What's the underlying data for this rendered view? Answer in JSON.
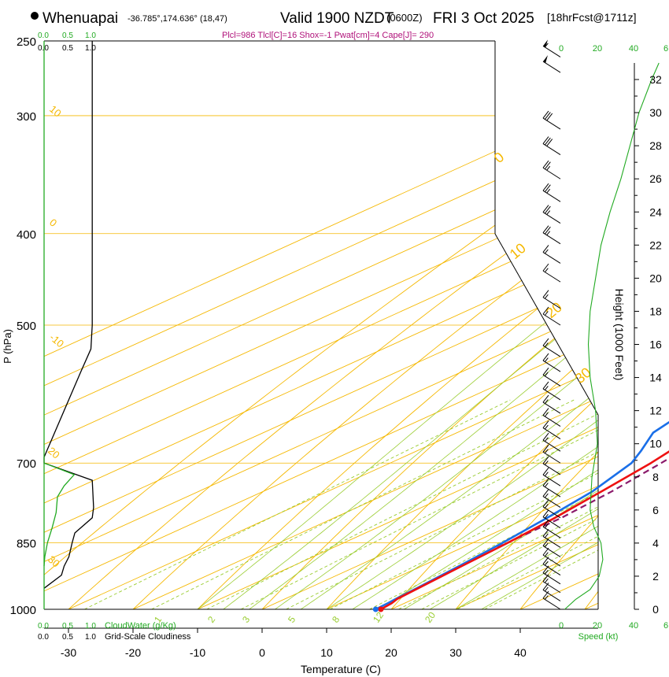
{
  "header": {
    "station": "Whenuapai",
    "coords": "-36.785°,174.636° (18,47)",
    "valid": "Valid 1900 NZDT",
    "utc": "(0600Z)",
    "date": "FRI 3 Oct 2025",
    "forecast": "[18hrFcst@1711z]",
    "params": "Plcl=986 Tlcl[C]=16 Shox=-1 Pwat[cm]=4 Cape[J]= 290"
  },
  "colors": {
    "temperature": "#ee1111",
    "dewpoint": "#1a6fe8",
    "parcel": "#8b1a6b",
    "isotherm": "#f5b800",
    "dry_adiabat": "#f5b800",
    "moist_adiabat": "#9acd32",
    "mixing_ratio": "#9acd32",
    "cloud_water": "#22aa22",
    "cloudiness": "#000000",
    "params_text": "#b0127a",
    "green_text": "#22aa22"
  },
  "chart_data": {
    "type": "line",
    "title": "Whenuapai Valid 1900 NZDT (0600Z) FRI 3 Oct 2025",
    "xlabel": "Temperature (C)",
    "ylabel": "P (hPa)",
    "ylabel_right": "Height (1000 Feet)",
    "xlim": [
      -35,
      45
    ],
    "ylim": [
      1000,
      250
    ],
    "x_ticks": [
      -30,
      -20,
      -10,
      0,
      10,
      20,
      30,
      40
    ],
    "x_tick_labels": [
      "-30",
      "-20",
      "-10",
      "0",
      "10",
      "20",
      "30",
      "40"
    ],
    "pressure_levels": [
      1000,
      850,
      700,
      500,
      400,
      300,
      250
    ],
    "pressure_labels": [
      "1000",
      "850",
      "700",
      "500",
      "400",
      "300",
      "250"
    ],
    "height_ticks": [
      0,
      2,
      4,
      6,
      8,
      10,
      12,
      14,
      16,
      18,
      20,
      22,
      24,
      26,
      28,
      30,
      32
    ],
    "height_labels": [
      "0",
      "2",
      "4",
      "6",
      "8",
      "10",
      "12",
      "14",
      "16",
      "18",
      "20",
      "22",
      "24",
      "26",
      "28",
      "30",
      "32"
    ],
    "series": [
      {
        "name": "Temperature",
        "pressure": [
          1000,
          985,
          975,
          950,
          900,
          850,
          800,
          750,
          700,
          650,
          600,
          550,
          500,
          450,
          400,
          350,
          300,
          270
        ],
        "values": [
          18.4,
          18.0,
          17.4,
          17.0,
          16.2,
          15.4,
          14.2,
          12.4,
          10.4,
          7.5,
          5.6,
          4.0,
          2.0,
          -0.8,
          -3.4,
          -6.6,
          -11.2,
          -14.8
        ]
      },
      {
        "name": "Dewpoint",
        "pressure": [
          1000,
          985,
          975,
          950,
          900,
          850,
          800,
          750,
          700,
          680,
          650,
          620,
          600,
          550,
          500,
          450,
          400,
          350,
          300,
          270
        ],
        "values": [
          17.6,
          17.4,
          17.2,
          16.8,
          15.8,
          14.6,
          13.0,
          11.0,
          7.4,
          4.8,
          0.4,
          -1.6,
          -3.0,
          -5.2,
          -8.0,
          -11.8,
          -17.0,
          -23.8,
          -30.0,
          -33.0
        ]
      },
      {
        "name": "Parcel",
        "pressure": [
          860,
          800,
          750,
          700,
          650,
          600,
          550,
          500,
          450,
          400,
          370
        ],
        "values": [
          15.4,
          15.2,
          14.0,
          12.0,
          9.6,
          7.1,
          4.5,
          1.8,
          -1.2,
          -4.8,
          -7.2
        ]
      }
    ],
    "cloud_water_axis": [
      "0.0",
      "0.5",
      "1.0"
    ],
    "cloudiness_axis": [
      "0.0",
      "0.5",
      "1.0"
    ],
    "cloud_water_label": "CloudWater (g/Kg)",
    "cloudiness_label": "Grid-Scale Cloudiness",
    "cloudiness_profile": {
      "pressure": [
        250,
        500,
        530,
        560,
        690,
        700,
        730,
        780,
        800,
        830,
        850,
        880,
        900,
        920,
        950
      ],
      "values": [
        0.72,
        0.72,
        0.7,
        0.55,
        0.0,
        0.0,
        0.72,
        0.74,
        0.72,
        0.46,
        0.42,
        0.37,
        0.3,
        0.26,
        0.0
      ]
    },
    "cloud_water_profile": {
      "pressure": [
        700,
        720,
        740,
        760,
        790,
        820,
        850,
        880,
        900
      ],
      "values": [
        0.0,
        0.45,
        0.3,
        0.2,
        0.18,
        0.12,
        0.05,
        0.01,
        0.0
      ]
    },
    "isotherm_labels": [
      "10",
      "0",
      "-10",
      "20",
      "30"
    ],
    "dry_adiabat_labels": [
      "0",
      "10",
      "20",
      "30"
    ],
    "mixing_ratio_labels": [
      "1",
      "2",
      "3",
      "5",
      "8",
      "12",
      "20"
    ],
    "speed_axis_label": "Speed (kt)",
    "speed_ticks_top": [
      "0",
      "20",
      "40",
      "6"
    ],
    "speed_ticks_bottom": [
      "0",
      "20",
      "40",
      "6"
    ],
    "wind_speed_profile": {
      "height_kft": [
        0,
        0.6,
        1.2,
        2,
        3,
        4,
        5,
        6,
        8,
        10,
        12,
        14,
        16,
        18,
        20,
        22,
        24,
        26,
        28,
        30,
        32,
        33
      ],
      "speed_kt": [
        2,
        8,
        16,
        21,
        23,
        22,
        18,
        16,
        17,
        20,
        19,
        16,
        15,
        16,
        19,
        22,
        27,
        33,
        38,
        43,
        50,
        54
      ]
    },
    "wind_barbs": {
      "pressure": [
        270,
        260,
        310,
        330,
        350,
        370,
        390,
        410,
        430,
        450,
        480,
        500,
        540,
        560,
        580,
        600,
        620,
        640,
        660,
        680,
        700,
        720,
        740,
        760,
        780,
        800,
        820,
        840,
        860,
        880,
        900,
        920,
        940,
        960,
        980,
        1000
      ],
      "speed_kt": [
        50,
        55,
        30,
        30,
        25,
        25,
        25,
        25,
        15,
        15,
        15,
        15,
        15,
        15,
        15,
        15,
        15,
        15,
        15,
        15,
        15,
        15,
        15,
        15,
        15,
        15,
        15,
        15,
        15,
        15,
        15,
        15,
        15,
        15,
        15,
        15
      ]
    }
  }
}
